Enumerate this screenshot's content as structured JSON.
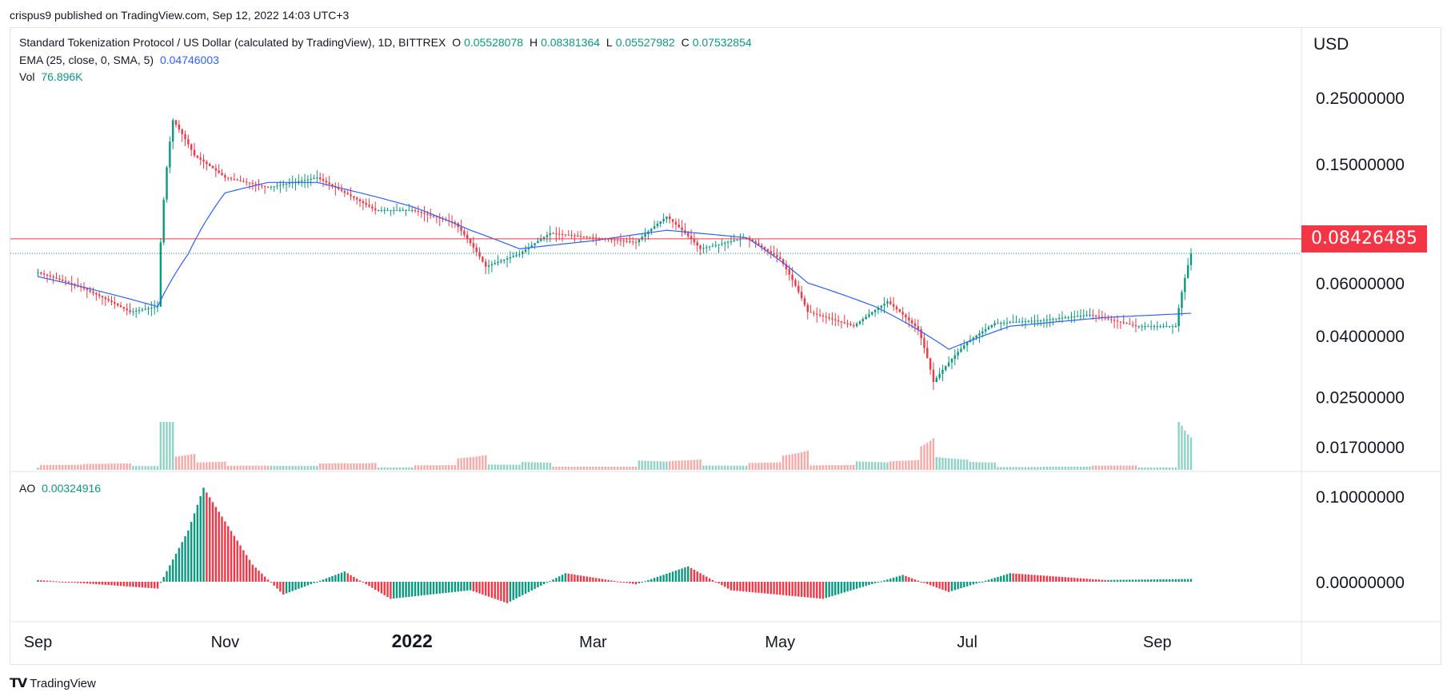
{
  "publisher": "crispus9 published on TradingView.com, Sep 12, 2022 14:03 UTC+3",
  "legend": {
    "symbol": "Standard Tokenization Protocol / US Dollar (calculated by TradingView), 1D, BITTREX",
    "o_label": "O",
    "o_value": "0.05528078",
    "h_label": "H",
    "h_value": "0.08381364",
    "l_label": "L",
    "l_value": "0.05527982",
    "c_label": "C",
    "c_value": "0.07532854",
    "ema_label": "EMA (25, close, 0, SMA, 5)",
    "ema_value": "0.04746003",
    "vol_label": "Vol",
    "vol_value": "76.896K",
    "ao_label": "AO",
    "ao_value": "0.00324916"
  },
  "footer": {
    "brand": "TradingView"
  },
  "colors": {
    "up": "#089981",
    "down": "#f23645",
    "ema": "#2962ff",
    "grid": "#e0e3eb",
    "price_line": "#f23645"
  },
  "chart_data": {
    "type": "candlestick",
    "price_axis": {
      "unit": "USD",
      "scale": "log",
      "ticks": [
        "0.25000000",
        "0.15000000",
        "0.06000000",
        "0.04000000",
        "0.02500000",
        "0.01700000"
      ],
      "tick_values": [
        0.25,
        0.15,
        0.06,
        0.04,
        0.025,
        0.017
      ]
    },
    "ao_axis": {
      "ticks": [
        "0.10000000",
        "0.00000000"
      ],
      "tick_values": [
        0.1,
        0.0
      ]
    },
    "time_axis": [
      "Sep",
      "Nov",
      "2022",
      "Mar",
      "May",
      "Jul",
      "Sep"
    ],
    "last_price": 0.08426485,
    "last_price_label": "0.08426485",
    "close_series": [
      [
        "2021-09-01",
        0.065
      ],
      [
        "2021-09-15",
        0.058
      ],
      [
        "2021-10-01",
        0.048
      ],
      [
        "2021-10-10",
        0.05
      ],
      [
        "2021-10-15",
        0.21
      ],
      [
        "2021-10-22",
        0.16
      ],
      [
        "2021-11-01",
        0.135
      ],
      [
        "2021-11-15",
        0.125
      ],
      [
        "2021-12-01",
        0.135
      ],
      [
        "2021-12-10",
        0.12
      ],
      [
        "2021-12-20",
        0.105
      ],
      [
        "2022-01-01",
        0.105
      ],
      [
        "2022-01-15",
        0.095
      ],
      [
        "2022-01-25",
        0.068
      ],
      [
        "2022-02-05",
        0.075
      ],
      [
        "2022-02-15",
        0.088
      ],
      [
        "2022-03-01",
        0.085
      ],
      [
        "2022-03-15",
        0.082
      ],
      [
        "2022-03-25",
        0.1
      ],
      [
        "2022-04-05",
        0.078
      ],
      [
        "2022-04-20",
        0.085
      ],
      [
        "2022-05-01",
        0.072
      ],
      [
        "2022-05-10",
        0.048
      ],
      [
        "2022-05-25",
        0.043
      ],
      [
        "2022-06-05",
        0.052
      ],
      [
        "2022-06-15",
        0.042
      ],
      [
        "2022-06-20",
        0.028
      ],
      [
        "2022-07-01",
        0.038
      ],
      [
        "2022-07-10",
        0.044
      ],
      [
        "2022-07-25",
        0.045
      ],
      [
        "2022-08-10",
        0.047
      ],
      [
        "2022-08-25",
        0.043
      ],
      [
        "2022-09-07",
        0.043
      ],
      [
        "2022-09-12",
        0.0753
      ]
    ],
    "ema_series": [
      [
        "2021-09-01",
        0.063
      ],
      [
        "2021-10-10",
        0.05
      ],
      [
        "2021-10-20",
        0.075
      ],
      [
        "2021-11-01",
        0.12
      ],
      [
        "2021-11-15",
        0.13
      ],
      [
        "2021-12-01",
        0.13
      ],
      [
        "2022-01-01",
        0.108
      ],
      [
        "2022-01-20",
        0.09
      ],
      [
        "2022-02-05",
        0.078
      ],
      [
        "2022-03-01",
        0.083
      ],
      [
        "2022-03-25",
        0.09
      ],
      [
        "2022-04-20",
        0.085
      ],
      [
        "2022-05-10",
        0.06
      ],
      [
        "2022-06-01",
        0.05
      ],
      [
        "2022-06-25",
        0.036
      ],
      [
        "2022-07-15",
        0.043
      ],
      [
        "2022-08-15",
        0.046
      ],
      [
        "2022-09-12",
        0.0475
      ]
    ],
    "ao_series": [
      [
        "2021-09-01",
        0.002
      ],
      [
        "2021-10-10",
        -0.008
      ],
      [
        "2021-10-20",
        0.06
      ],
      [
        "2021-10-25",
        0.11
      ],
      [
        "2021-11-10",
        0.02
      ],
      [
        "2021-11-20",
        -0.015
      ],
      [
        "2021-12-10",
        0.012
      ],
      [
        "2021-12-25",
        -0.02
      ],
      [
        "2022-01-20",
        -0.01
      ],
      [
        "2022-02-01",
        -0.025
      ],
      [
        "2022-02-20",
        0.01
      ],
      [
        "2022-03-15",
        -0.003
      ],
      [
        "2022-04-01",
        0.018
      ],
      [
        "2022-04-15",
        -0.01
      ],
      [
        "2022-05-15",
        -0.02
      ],
      [
        "2022-06-10",
        0.008
      ],
      [
        "2022-06-25",
        -0.012
      ],
      [
        "2022-07-15",
        0.01
      ],
      [
        "2022-08-15",
        0.002
      ],
      [
        "2022-09-12",
        0.0032
      ]
    ]
  }
}
